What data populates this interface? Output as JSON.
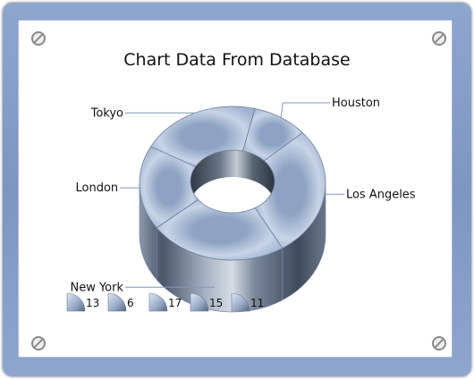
{
  "chart_data": {
    "type": "pie",
    "style": "3D doughnut",
    "title": "Chart Data From Database",
    "categories": [
      "Houston",
      "Los Angeles",
      "New York",
      "London",
      "Tokyo"
    ],
    "values": [
      6,
      17,
      15,
      11,
      13
    ],
    "legend_values": [
      "13",
      "6",
      "17",
      "15",
      "11"
    ],
    "legend_placement": "bottom-left",
    "colors": {
      "face": "#b6c6de",
      "side_dark": "#3f4b5c",
      "side_light": "#9aa6b6",
      "edge": "#6d7f9c",
      "leader": "#7f98bf"
    }
  }
}
